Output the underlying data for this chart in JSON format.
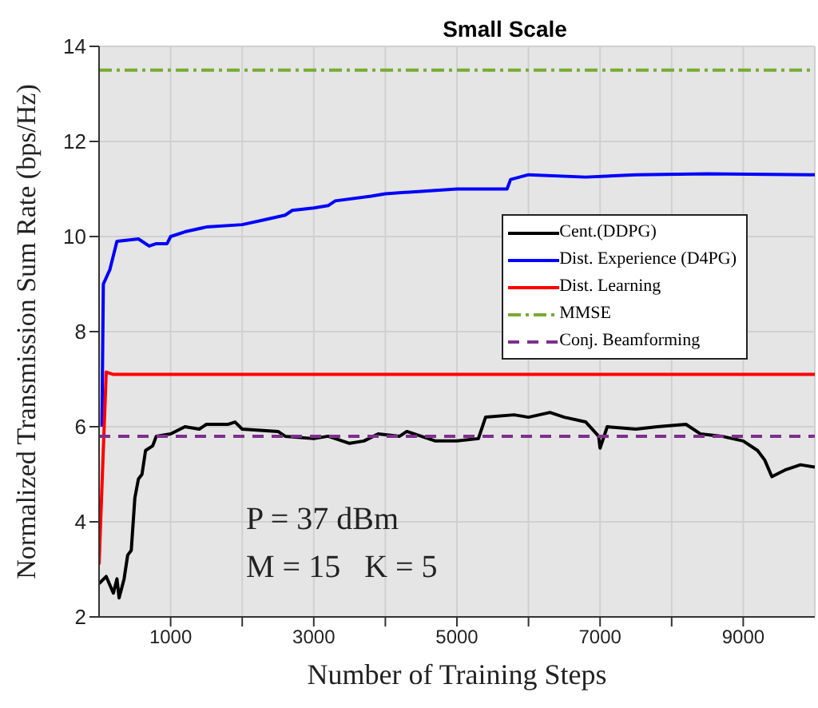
{
  "chart_data": {
    "type": "line",
    "title": "Small Scale",
    "xlabel": "Number of Training Steps",
    "ylabel": "Normalized Transmission Sum Rate (bps/Hz)",
    "xlim": [
      0,
      10000
    ],
    "xticks": [
      1000,
      {
        "value": 2000,
        "label": null
      },
      3000,
      {
        "value": 4000,
        "label": null
      },
      5000,
      {
        "value": 6000,
        "label": null
      },
      7000,
      {
        "value": 8000,
        "label": null
      },
      9000
    ],
    "ylim": [
      2,
      14
    ],
    "yticks": [
      2,
      4,
      6,
      8,
      10,
      12,
      14
    ],
    "grid": true,
    "legend": "right",
    "marker": "none",
    "annotations": [
      "P = 37 dBm",
      "M = 15   K = 5"
    ],
    "series": [
      {
        "name": "Cent.(DDPG)",
        "color": "#000000",
        "line_style": "solid",
        "x": [
          0,
          100,
          200,
          250,
          280,
          350,
          400,
          450,
          500,
          550,
          600,
          650,
          750,
          800,
          1000,
          1200,
          1400,
          1500,
          1800,
          1900,
          2000,
          2500,
          2600,
          3000,
          3200,
          3500,
          3700,
          3900,
          4200,
          4300,
          4700,
          5000,
          5300,
          5400,
          5800,
          6000,
          6300,
          6500,
          6800,
          6980,
          7000,
          7100,
          7500,
          7800,
          8200,
          8400,
          8700,
          9000,
          9200,
          9300,
          9400,
          9600,
          9800,
          10000
        ],
        "values": [
          2.7,
          2.85,
          2.5,
          2.8,
          2.4,
          2.8,
          3.3,
          3.4,
          4.5,
          4.9,
          5.0,
          5.5,
          5.6,
          5.8,
          5.85,
          6.0,
          5.95,
          6.05,
          6.05,
          6.1,
          5.95,
          5.9,
          5.8,
          5.75,
          5.8,
          5.65,
          5.7,
          5.85,
          5.8,
          5.9,
          5.7,
          5.7,
          5.75,
          6.2,
          6.25,
          6.2,
          6.3,
          6.2,
          6.1,
          5.8,
          5.55,
          6.0,
          5.95,
          6.0,
          6.05,
          5.85,
          5.8,
          5.7,
          5.5,
          5.3,
          4.95,
          5.1,
          5.2,
          5.15
        ]
      },
      {
        "name": "Dist. Experience (D4PG)",
        "color": "#0000ff",
        "line_style": "solid",
        "x": [
          40,
          60,
          150,
          250,
          550,
          700,
          800,
          950,
          1000,
          1200,
          1500,
          2000,
          2300,
          2600,
          2700,
          3000,
          3200,
          3300,
          3800,
          4000,
          4500,
          5000,
          5700,
          5750,
          6000,
          6800,
          7500,
          8500,
          10000
        ],
        "values": [
          6,
          9,
          9.3,
          9.9,
          9.95,
          9.8,
          9.85,
          9.85,
          10.0,
          10.1,
          10.2,
          10.25,
          10.35,
          10.45,
          10.55,
          10.6,
          10.65,
          10.75,
          10.85,
          10.9,
          10.95,
          11.0,
          11.0,
          11.2,
          11.3,
          11.25,
          11.3,
          11.32,
          11.3
        ]
      },
      {
        "name": "Dist. Learning",
        "color": "#ff0000",
        "line_style": "solid",
        "x": [
          0,
          100,
          200,
          10000
        ],
        "values": [
          3.1,
          7.15,
          7.1,
          7.1
        ]
      },
      {
        "name": "MMSE",
        "color": "#77ac30",
        "line_style": "dashdot",
        "x": [
          0,
          10000
        ],
        "values": [
          13.5,
          13.5
        ]
      },
      {
        "name": "Conj. Beamforming",
        "color": "#7e2f8e",
        "line_style": "dashed",
        "x": [
          0,
          10000
        ],
        "values": [
          5.8,
          5.8
        ]
      }
    ]
  }
}
